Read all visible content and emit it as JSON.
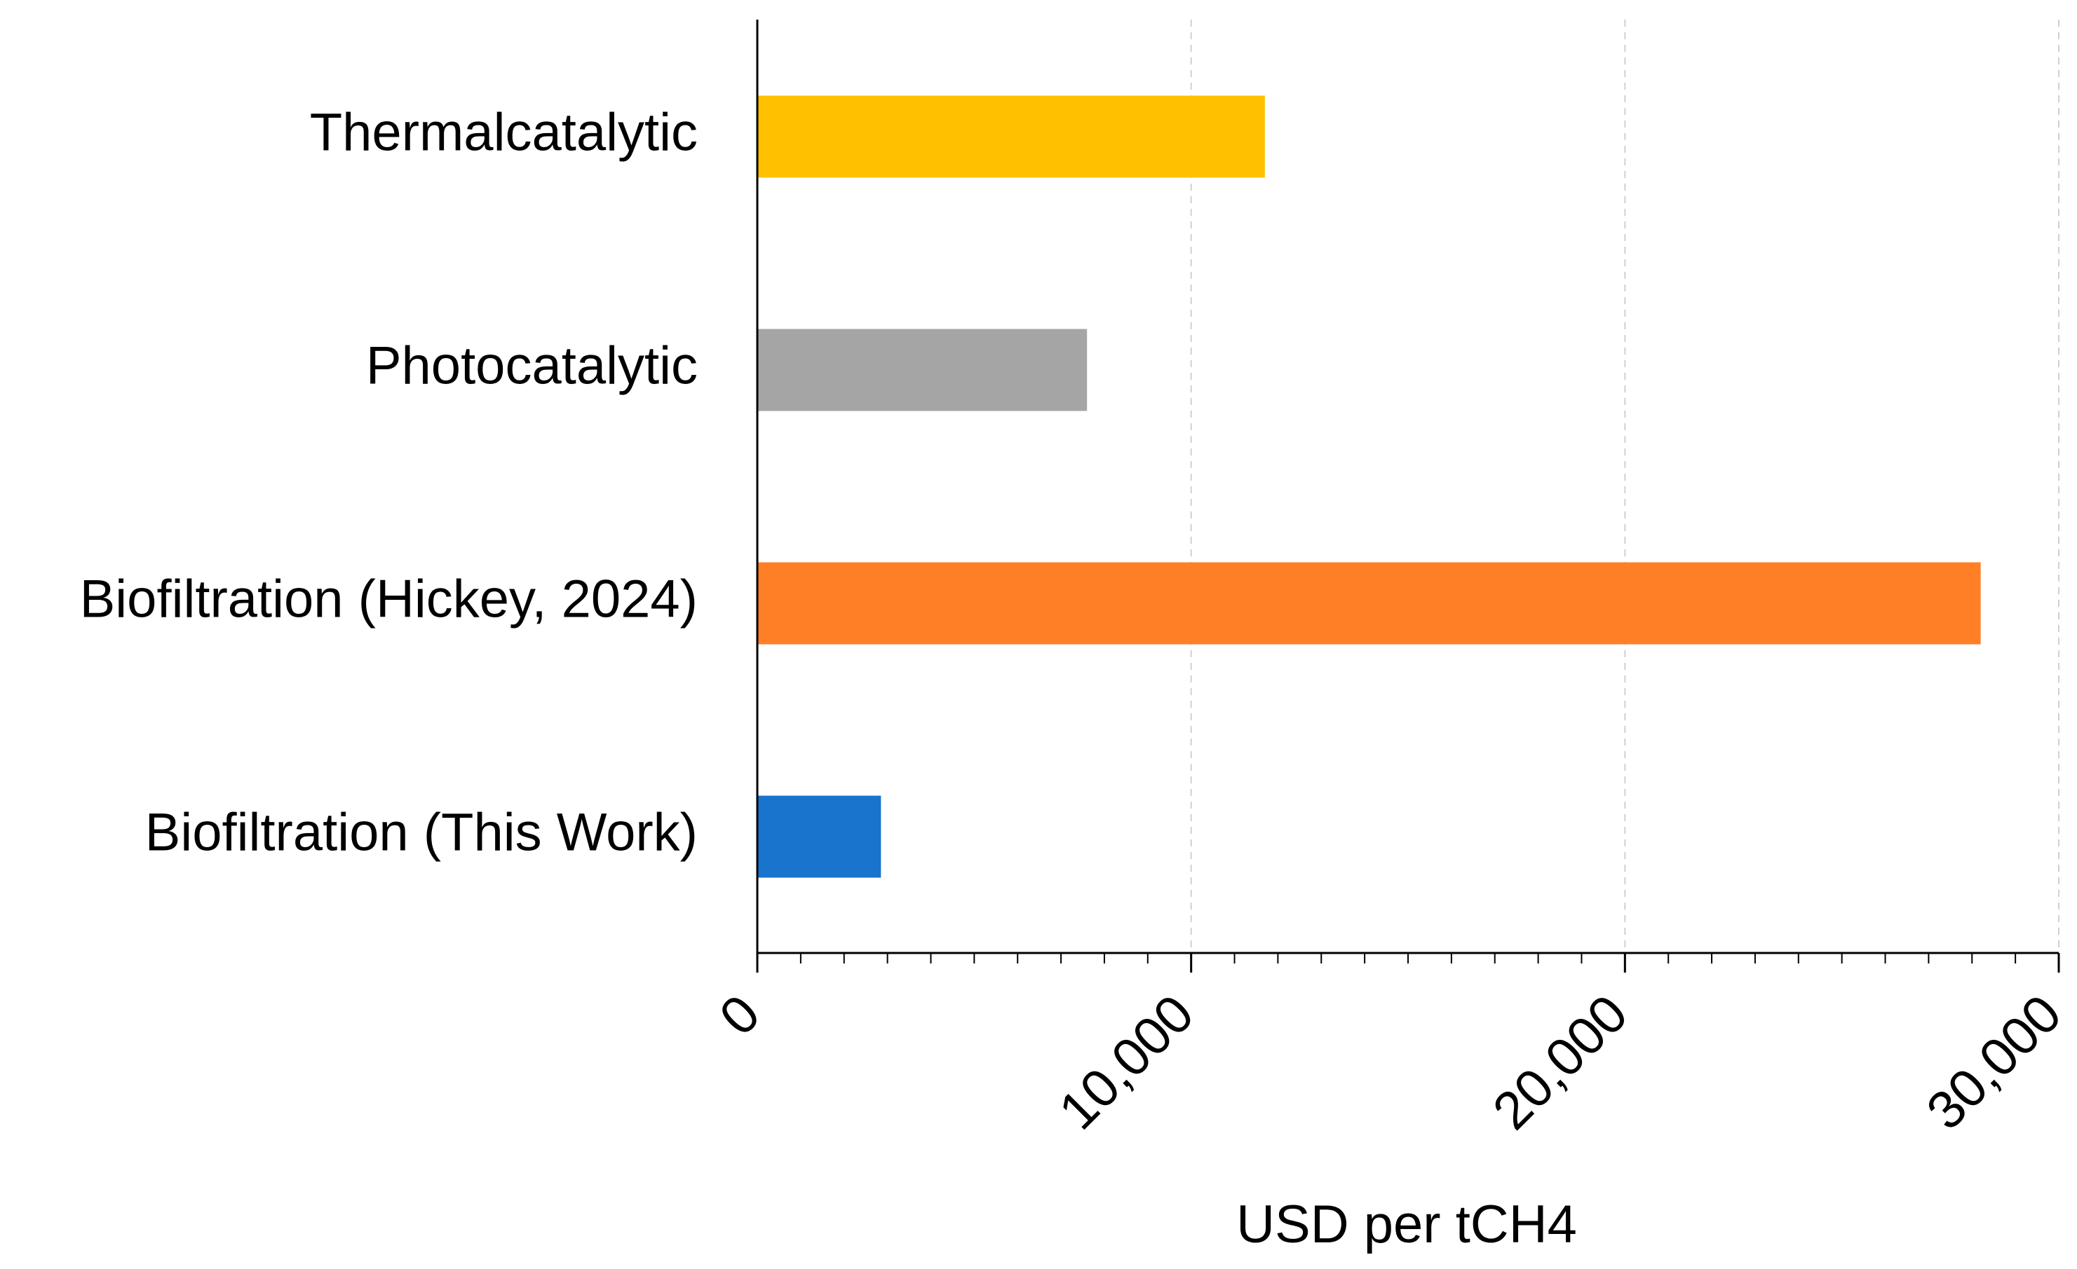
{
  "chart_data": {
    "type": "hbar",
    "x_label": "USD per tCH4",
    "categories": [
      "Thermalcatalytic",
      "Photocatalytic",
      "Biofiltration (Hickey, 2024)",
      "Biofiltration (This Work)"
    ],
    "values": [
      11700,
      7600,
      28200,
      2850
    ],
    "colors": [
      "#FFC000",
      "#A5A5A5",
      "#FF7F27",
      "#1874CD"
    ],
    "xlim": [
      0,
      30000
    ],
    "xticks": [
      0,
      {
        "value": 10000,
        "label": "10,000"
      },
      {
        "value": 20000,
        "label": "20,000"
      },
      {
        "value": 30000,
        "label": "30,000"
      }
    ],
    "xminorticks": [
      1000,
      2000,
      3000,
      4000,
      5000,
      6000,
      7000,
      8000,
      9000,
      11000,
      12000,
      13000,
      14000,
      15000,
      16000,
      17000,
      18000,
      19000,
      21000,
      22000,
      23000,
      24000,
      25000,
      26000,
      27000,
      28000,
      29000
    ],
    "grid": true
  }
}
